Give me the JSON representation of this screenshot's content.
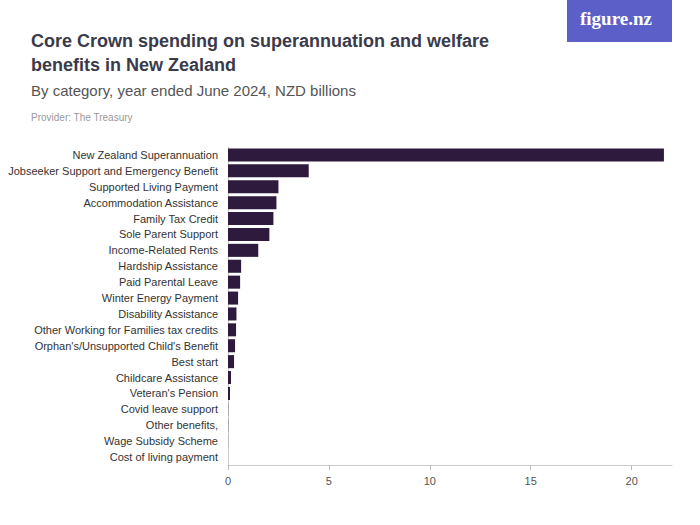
{
  "chart_data": {
    "type": "bar",
    "orientation": "horizontal",
    "title": "Core Crown spending on superannuation and welfare benefits in New Zealand",
    "subtitle": "By category, year ended June 2024, NZD billions",
    "note": "Provider: The Treasury",
    "logo": "figure.nz",
    "categories": [
      "New Zealand Superannuation",
      "Jobseeker Support and Emergency Benefit",
      "Supported Living Payment",
      "Accommodation Assistance",
      "Family Tax Credit",
      "Sole Parent Support",
      "Income-Related Rents",
      "Hardship Assistance",
      "Paid Parental Leave",
      "Winter Energy Payment",
      "Disability Assistance",
      "Other Working for Families tax credits",
      "Orphan's/Unsupported Child's Benefit",
      "Best start",
      "Childcare Assistance",
      "Veteran's Pension",
      "Covid leave support",
      "Other benefits,",
      "Wage Subsidy Scheme",
      "Cost of living payment"
    ],
    "values": [
      21.6,
      4.0,
      2.5,
      2.4,
      2.25,
      2.05,
      1.5,
      0.65,
      0.6,
      0.5,
      0.42,
      0.4,
      0.35,
      0.3,
      0.15,
      0.1,
      0.01,
      0.01,
      0.005,
      0
    ],
    "color": "#2e1a3d",
    "xlim": [
      0,
      22
    ],
    "xticks": [
      0,
      5,
      10,
      15,
      20
    ],
    "grid": false
  }
}
